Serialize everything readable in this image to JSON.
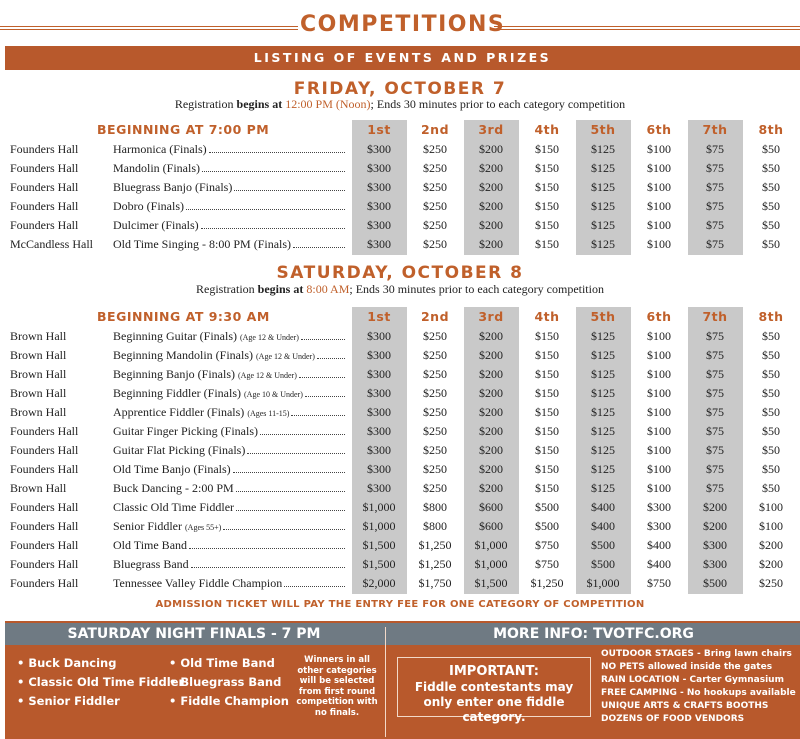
{
  "title": "COMPETITIONS",
  "banner": "LISTING OF EVENTS AND PRIZES",
  "places": [
    "1st",
    "2nd",
    "3rd",
    "4th",
    "5th",
    "6th",
    "7th",
    "8th"
  ],
  "days": [
    {
      "heading": "FRIDAY, OCTOBER 7",
      "registration": {
        "pre": "Registration",
        "bold": "begins at",
        "time": "12:00 PM (Noon)",
        "post": "; Ends 30 minutes prior to each category competition"
      },
      "start": "BEGINNING AT 7:00 PM",
      "rows": [
        {
          "hall": "Founders Hall",
          "event": "Harmonica (Finals)",
          "prizes": [
            "$300",
            "$250",
            "$200",
            "$150",
            "$125",
            "$100",
            "$75",
            "$50"
          ]
        },
        {
          "hall": "Founders Hall",
          "event": "Mandolin (Finals)",
          "prizes": [
            "$300",
            "$250",
            "$200",
            "$150",
            "$125",
            "$100",
            "$75",
            "$50"
          ]
        },
        {
          "hall": "Founders Hall",
          "event": "Bluegrass Banjo (Finals)",
          "prizes": [
            "$300",
            "$250",
            "$200",
            "$150",
            "$125",
            "$100",
            "$75",
            "$50"
          ]
        },
        {
          "hall": "Founders Hall",
          "event": "Dobro (Finals)",
          "prizes": [
            "$300",
            "$250",
            "$200",
            "$150",
            "$125",
            "$100",
            "$75",
            "$50"
          ]
        },
        {
          "hall": "Founders Hall",
          "event": "Dulcimer (Finals)",
          "prizes": [
            "$300",
            "$250",
            "$200",
            "$150",
            "$125",
            "$100",
            "$75",
            "$50"
          ]
        },
        {
          "hall": "McCandless Hall",
          "event": "Old Time Singing - 8:00 PM (Finals)",
          "prizes": [
            "$300",
            "$250",
            "$200",
            "$150",
            "$125",
            "$100",
            "$75",
            "$50"
          ]
        }
      ]
    },
    {
      "heading": "SATURDAY, OCTOBER 8",
      "registration": {
        "pre": "Registration",
        "bold": "begins at",
        "time": "8:00 AM",
        "post": "; Ends 30 minutes prior to each category competition"
      },
      "start": "BEGINNING AT 9:30 AM",
      "rows": [
        {
          "hall": "Brown Hall",
          "event": "Beginning Guitar (Finals)",
          "note": "(Age 12 & Under)",
          "prizes": [
            "$300",
            "$250",
            "$200",
            "$150",
            "$125",
            "$100",
            "$75",
            "$50"
          ]
        },
        {
          "hall": "Brown Hall",
          "event": "Beginning Mandolin (Finals)",
          "note": "(Age 12 & Under)",
          "prizes": [
            "$300",
            "$250",
            "$200",
            "$150",
            "$125",
            "$100",
            "$75",
            "$50"
          ]
        },
        {
          "hall": "Brown Hall",
          "event": "Beginning Banjo (Finals)",
          "note": "(Age 12 & Under)",
          "prizes": [
            "$300",
            "$250",
            "$200",
            "$150",
            "$125",
            "$100",
            "$75",
            "$50"
          ]
        },
        {
          "hall": "Brown Hall",
          "event": "Beginning Fiddler (Finals)",
          "note": "(Age 10 & Under)",
          "prizes": [
            "$300",
            "$250",
            "$200",
            "$150",
            "$125",
            "$100",
            "$75",
            "$50"
          ]
        },
        {
          "hall": "Brown Hall",
          "event": "Apprentice Fiddler (Finals)",
          "note": "(Ages 11-15)",
          "prizes": [
            "$300",
            "$250",
            "$200",
            "$150",
            "$125",
            "$100",
            "$75",
            "$50"
          ]
        },
        {
          "hall": "Founders Hall",
          "event": "Guitar Finger Picking (Finals)",
          "prizes": [
            "$300",
            "$250",
            "$200",
            "$150",
            "$125",
            "$100",
            "$75",
            "$50"
          ]
        },
        {
          "hall": "Founders Hall",
          "event": "Guitar Flat Picking (Finals)",
          "prizes": [
            "$300",
            "$250",
            "$200",
            "$150",
            "$125",
            "$100",
            "$75",
            "$50"
          ]
        },
        {
          "hall": "Founders Hall",
          "event": "Old Time Banjo (Finals)",
          "prizes": [
            "$300",
            "$250",
            "$200",
            "$150",
            "$125",
            "$100",
            "$75",
            "$50"
          ]
        },
        {
          "hall": "Brown Hall",
          "event": "Buck Dancing - 2:00 PM",
          "prizes": [
            "$300",
            "$250",
            "$200",
            "$150",
            "$125",
            "$100",
            "$75",
            "$50"
          ]
        },
        {
          "hall": "Founders Hall",
          "event": "Classic Old Time Fiddler",
          "prizes": [
            "$1,000",
            "$800",
            "$600",
            "$500",
            "$400",
            "$300",
            "$200",
            "$100"
          ]
        },
        {
          "hall": "Founders Hall",
          "event": "Senior Fiddler",
          "note": "(Ages 55+)",
          "prizes": [
            "$1,000",
            "$800",
            "$600",
            "$500",
            "$400",
            "$300",
            "$200",
            "$100"
          ]
        },
        {
          "hall": "Founders Hall",
          "event": "Old Time Band",
          "prizes": [
            "$1,500",
            "$1,250",
            "$1,000",
            "$750",
            "$500",
            "$400",
            "$300",
            "$200"
          ]
        },
        {
          "hall": "Founders Hall",
          "event": "Bluegrass Band",
          "prizes": [
            "$1,500",
            "$1,250",
            "$1,000",
            "$750",
            "$500",
            "$400",
            "$300",
            "$200"
          ]
        },
        {
          "hall": "Founders Hall",
          "event": "Tennessee Valley Fiddle Champion",
          "prizes": [
            "$2,000",
            "$1,750",
            "$1,500",
            "$1,250",
            "$1,000",
            "$750",
            "$500",
            "$250"
          ]
        }
      ]
    }
  ],
  "admission": "ADMISSION TICKET WILL PAY THE ENTRY FEE FOR ONE CATEGORY OF COMPETITION",
  "finals": {
    "heading": "SATURDAY NIGHT FINALS - 7 PM",
    "list": [
      "Buck Dancing",
      "Classic Old Time Fiddler",
      "Senior Fiddler",
      "Old Time Band",
      "Bluegrass Band",
      "Fiddle Champion"
    ],
    "winners_note": "Winners in all other categories will be selected from first round competition with no finals."
  },
  "info": {
    "heading": "MORE INFO: TVOTFC.ORG",
    "important_title": "IMPORTANT:",
    "important_text": "Fiddle contestants may only enter one fiddle category.",
    "notes": [
      "OUTDOOR STAGES - Bring lawn chairs",
      "NO PETS allowed inside the gates",
      "RAIN LOCATION - Carter Gymnasium",
      "FREE CAMPING - No hookups available",
      "UNIQUE ARTS & CRAFTS BOOTHS",
      "DOZENS OF FOOD VENDORS"
    ]
  }
}
